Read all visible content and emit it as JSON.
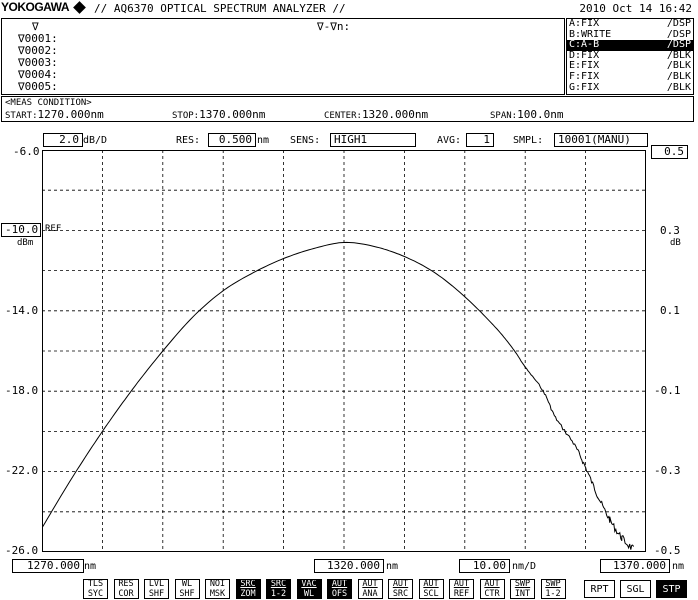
{
  "header": {
    "brand": "YOKOGAWA",
    "title": "// AQ6370 OPTICAL SPECTRUM ANALYZER //",
    "datetime": "2010 Oct 14 16:42"
  },
  "markers": {
    "header": "∇",
    "diff_header": "∇-∇n:",
    "rows": [
      "∇0001:",
      "∇0002:",
      "∇0003:",
      "∇0004:",
      "∇0005:"
    ]
  },
  "traces": [
    {
      "name": "A:FIX",
      "mode": "/DSP",
      "selected": false
    },
    {
      "name": "B:WRITE",
      "mode": "/DSP",
      "selected": false
    },
    {
      "name": "C:A-B",
      "mode": "/DSP",
      "selected": true
    },
    {
      "name": "D:FIX",
      "mode": "/BLK",
      "selected": false
    },
    {
      "name": "E:FIX",
      "mode": "/BLK",
      "selected": false
    },
    {
      "name": "F:FIX",
      "mode": "/BLK",
      "selected": false
    },
    {
      "name": "G:FIX",
      "mode": "/BLK",
      "selected": false
    }
  ],
  "meas": {
    "title": "<MEAS CONDITION>",
    "start_label": "START:",
    "start": "1270.000nm",
    "stop_label": "STOP:",
    "stop": "1370.000nm",
    "center_label": "CENTER:",
    "center": "1320.000nm",
    "span_label": "SPAN:",
    "span": "100.0nm"
  },
  "settings": {
    "scale_value": "2.0",
    "scale_unit": "dB/D",
    "res_label": "RES:",
    "res_value": "0.500",
    "res_unit": "nm",
    "sens_label": "SENS:",
    "sens_value": "HIGH1",
    "avg_label": "AVG:",
    "avg_value": "1",
    "smpl_label": "SMPL:",
    "smpl_value": "10001(MANU)",
    "right_scale": "0.5"
  },
  "ref": {
    "value": "-10.0",
    "label": "REF",
    "unit": "dBm",
    "right_unit": "dB"
  },
  "bottom": {
    "start": "1270.000",
    "start_unit": "nm",
    "center": "1320.000",
    "center_unit": "nm",
    "per_div": "10.00",
    "per_div_unit": "nm/D",
    "stop": "1370.000",
    "stop_unit": "nm"
  },
  "softkeys": [
    {
      "top": "TLS",
      "bottom": "SYC",
      "on": false,
      "ul": false
    },
    {
      "top": "RES",
      "bottom": "COR",
      "on": false,
      "ul": false
    },
    {
      "top": "LVL",
      "bottom": "SHF",
      "on": false,
      "ul": false
    },
    {
      "top": "WL",
      "bottom": "SHF",
      "on": false,
      "ul": false
    },
    {
      "top": "NOI",
      "bottom": "MSK",
      "on": false,
      "ul": false
    },
    {
      "top": "SRC",
      "bottom": "ZOM",
      "on": true,
      "ul": true
    },
    {
      "top": "SRC",
      "bottom": "1-2",
      "on": true,
      "ul": true
    },
    {
      "top": "VAC",
      "bottom": "WL",
      "on": true,
      "ul": true
    },
    {
      "top": "AUT",
      "bottom": "OFS",
      "on": true,
      "ul": true
    },
    {
      "top": "AUT",
      "bottom": "ANA",
      "on": false,
      "ul": true
    },
    {
      "top": "AUT",
      "bottom": "SRC",
      "on": false,
      "ul": true
    },
    {
      "top": "AUT",
      "bottom": "SCL",
      "on": false,
      "ul": true
    },
    {
      "top": "AUT",
      "bottom": "REF",
      "on": false,
      "ul": true
    },
    {
      "top": "AUT",
      "bottom": "CTR",
      "on": false,
      "ul": true
    },
    {
      "top": "SWP",
      "bottom": "INT",
      "on": false,
      "ul": true
    },
    {
      "top": "SWP",
      "bottom": "1-2",
      "on": false,
      "ul": true
    }
  ],
  "sweep_buttons": [
    {
      "label": "RPT",
      "on": false
    },
    {
      "label": "SGL",
      "on": false
    },
    {
      "label": "STP",
      "on": true
    }
  ],
  "chart_data": {
    "type": "line",
    "x_range": [
      1270,
      1370
    ],
    "y_range": [
      -26.0,
      -6.0
    ],
    "y_ticks": [
      "-6.0",
      "-10.0",
      "-14.0",
      "-18.0",
      "-22.0",
      "-26.0"
    ],
    "y2_ticks": [
      "0.5",
      "0.3",
      "0.1",
      "-0.1",
      "-0.3",
      "-0.5"
    ],
    "grid": true,
    "series": [
      {
        "x": [
          1270,
          1275,
          1280,
          1285,
          1290,
          1295,
          1300,
          1305,
          1310,
          1315,
          1320,
          1325,
          1330,
          1335,
          1340,
          1345,
          1348,
          1350,
          1353,
          1355,
          1358,
          1360,
          1362,
          1364,
          1366,
          1368
        ],
        "y": [
          -24.8,
          -22.3,
          -20.0,
          -17.9,
          -16.0,
          -14.3,
          -13.0,
          -12.1,
          -11.4,
          -10.9,
          -10.6,
          -10.8,
          -11.3,
          -12.1,
          -13.3,
          -14.8,
          -15.9,
          -16.8,
          -18.0,
          -19.3,
          -20.6,
          -21.8,
          -23.2,
          -24.4,
          -25.3,
          -25.9
        ]
      }
    ]
  }
}
